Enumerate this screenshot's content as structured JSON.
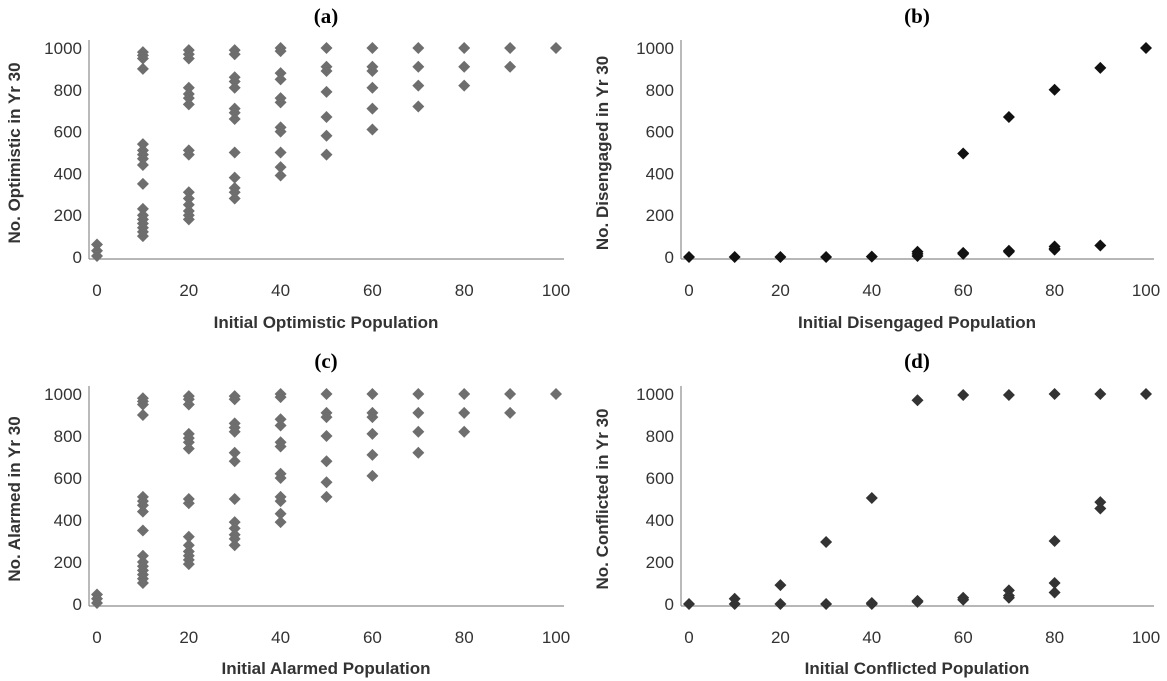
{
  "figure": {
    "panels": [
      {
        "title": "(a)",
        "chart_data": {
          "type": "scatter",
          "xlabel": "Initial Optimistic Population",
          "ylabel": "No. Optimistic in Yr 30",
          "xlim": [
            0,
            100
          ],
          "ylim": [
            0,
            1000
          ],
          "xticks": [
            "0",
            "20",
            "40",
            "60",
            "80",
            "100"
          ],
          "yticks": [
            "0",
            "200",
            "400",
            "600",
            "800",
            "1000"
          ],
          "grid": false,
          "legend": "none",
          "marker_color": "#6e6e6e",
          "points": [
            [
              0,
              60
            ],
            [
              0,
              30
            ],
            [
              0,
              5
            ],
            [
              10,
              980
            ],
            [
              10,
              965
            ],
            [
              10,
              950
            ],
            [
              10,
              900
            ],
            [
              10,
              540
            ],
            [
              10,
              510
            ],
            [
              10,
              490
            ],
            [
              10,
              470
            ],
            [
              10,
              440
            ],
            [
              10,
              350
            ],
            [
              10,
              230
            ],
            [
              10,
              200
            ],
            [
              10,
              180
            ],
            [
              10,
              160
            ],
            [
              10,
              140
            ],
            [
              10,
              120
            ],
            [
              10,
              100
            ],
            [
              20,
              990
            ],
            [
              20,
              970
            ],
            [
              20,
              950
            ],
            [
              20,
              810
            ],
            [
              20,
              780
            ],
            [
              20,
              760
            ],
            [
              20,
              730
            ],
            [
              20,
              510
            ],
            [
              20,
              490
            ],
            [
              20,
              310
            ],
            [
              20,
              280
            ],
            [
              20,
              250
            ],
            [
              20,
              220
            ],
            [
              20,
              200
            ],
            [
              20,
              180
            ],
            [
              30,
              990
            ],
            [
              30,
              970
            ],
            [
              30,
              860
            ],
            [
              30,
              840
            ],
            [
              30,
              810
            ],
            [
              30,
              710
            ],
            [
              30,
              690
            ],
            [
              30,
              660
            ],
            [
              30,
              500
            ],
            [
              30,
              380
            ],
            [
              30,
              330
            ],
            [
              30,
              310
            ],
            [
              30,
              280
            ],
            [
              40,
              1000
            ],
            [
              40,
              985
            ],
            [
              40,
              880
            ],
            [
              40,
              850
            ],
            [
              40,
              760
            ],
            [
              40,
              740
            ],
            [
              40,
              620
            ],
            [
              40,
              600
            ],
            [
              40,
              500
            ],
            [
              40,
              430
            ],
            [
              40,
              390
            ],
            [
              50,
              1000
            ],
            [
              50,
              910
            ],
            [
              50,
              890
            ],
            [
              50,
              790
            ],
            [
              50,
              670
            ],
            [
              50,
              580
            ],
            [
              50,
              490
            ],
            [
              60,
              1000
            ],
            [
              60,
              910
            ],
            [
              60,
              890
            ],
            [
              60,
              810
            ],
            [
              60,
              710
            ],
            [
              60,
              610
            ],
            [
              70,
              1000
            ],
            [
              70,
              910
            ],
            [
              70,
              820
            ],
            [
              70,
              720
            ],
            [
              80,
              1000
            ],
            [
              80,
              910
            ],
            [
              80,
              820
            ],
            [
              90,
              1000
            ],
            [
              90,
              910
            ],
            [
              100,
              1000
            ]
          ]
        }
      },
      {
        "title": "(b)",
        "chart_data": {
          "type": "scatter",
          "xlabel": "Initial Disengaged Population",
          "ylabel": "No. Disengaged in Yr 30",
          "xlim": [
            0,
            100
          ],
          "ylim": [
            0,
            1000
          ],
          "xticks": [
            "0",
            "20",
            "40",
            "60",
            "80",
            "100"
          ],
          "yticks": [
            "0",
            "200",
            "400",
            "600",
            "800",
            "1000"
          ],
          "grid": false,
          "legend": "none",
          "marker_color": "#111111",
          "points": [
            [
              0,
              0
            ],
            [
              10,
              0
            ],
            [
              20,
              0
            ],
            [
              30,
              0
            ],
            [
              40,
              2
            ],
            [
              50,
              25
            ],
            [
              50,
              15
            ],
            [
              50,
              5
            ],
            [
              60,
              495
            ],
            [
              60,
              20
            ],
            [
              60,
              15
            ],
            [
              70,
              670
            ],
            [
              70,
              30
            ],
            [
              70,
              25
            ],
            [
              80,
              800
            ],
            [
              80,
              50
            ],
            [
              80,
              40
            ],
            [
              80,
              35
            ],
            [
              90,
              905
            ],
            [
              90,
              55
            ],
            [
              100,
              1000
            ]
          ]
        }
      },
      {
        "title": "(c)",
        "chart_data": {
          "type": "scatter",
          "xlabel": "Initial Alarmed Population",
          "ylabel": "No. Alarmed in Yr 30",
          "xlim": [
            0,
            100
          ],
          "ylim": [
            0,
            1000
          ],
          "xticks": [
            "0",
            "20",
            "40",
            "60",
            "80",
            "100"
          ],
          "yticks": [
            "0",
            "200",
            "400",
            "600",
            "800",
            "1000"
          ],
          "grid": false,
          "legend": "none",
          "marker_color": "#6e6e6e",
          "points": [
            [
              0,
              45
            ],
            [
              0,
              25
            ],
            [
              0,
              5
            ],
            [
              10,
              980
            ],
            [
              10,
              965
            ],
            [
              10,
              950
            ],
            [
              10,
              900
            ],
            [
              10,
              510
            ],
            [
              10,
              490
            ],
            [
              10,
              470
            ],
            [
              10,
              440
            ],
            [
              10,
              350
            ],
            [
              10,
              230
            ],
            [
              10,
              200
            ],
            [
              10,
              180
            ],
            [
              10,
              160
            ],
            [
              10,
              140
            ],
            [
              10,
              120
            ],
            [
              10,
              100
            ],
            [
              20,
              990
            ],
            [
              20,
              975
            ],
            [
              20,
              950
            ],
            [
              20,
              810
            ],
            [
              20,
              790
            ],
            [
              20,
              770
            ],
            [
              20,
              740
            ],
            [
              20,
              500
            ],
            [
              20,
              480
            ],
            [
              20,
              320
            ],
            [
              20,
              280
            ],
            [
              20,
              250
            ],
            [
              20,
              230
            ],
            [
              20,
              210
            ],
            [
              20,
              190
            ],
            [
              30,
              990
            ],
            [
              30,
              975
            ],
            [
              30,
              860
            ],
            [
              30,
              840
            ],
            [
              30,
              820
            ],
            [
              30,
              720
            ],
            [
              30,
              680
            ],
            [
              30,
              500
            ],
            [
              30,
              390
            ],
            [
              30,
              360
            ],
            [
              30,
              330
            ],
            [
              30,
              310
            ],
            [
              30,
              280
            ],
            [
              40,
              1000
            ],
            [
              40,
              985
            ],
            [
              40,
              880
            ],
            [
              40,
              850
            ],
            [
              40,
              770
            ],
            [
              40,
              750
            ],
            [
              40,
              620
            ],
            [
              40,
              600
            ],
            [
              40,
              510
            ],
            [
              40,
              490
            ],
            [
              40,
              430
            ],
            [
              40,
              390
            ],
            [
              50,
              1000
            ],
            [
              50,
              910
            ],
            [
              50,
              890
            ],
            [
              50,
              800
            ],
            [
              50,
              680
            ],
            [
              50,
              580
            ],
            [
              50,
              510
            ],
            [
              60,
              1000
            ],
            [
              60,
              910
            ],
            [
              60,
              890
            ],
            [
              60,
              810
            ],
            [
              60,
              710
            ],
            [
              60,
              610
            ],
            [
              70,
              1000
            ],
            [
              70,
              910
            ],
            [
              70,
              820
            ],
            [
              70,
              720
            ],
            [
              80,
              1000
            ],
            [
              80,
              910
            ],
            [
              80,
              820
            ],
            [
              90,
              1000
            ],
            [
              90,
              910
            ],
            [
              100,
              1000
            ]
          ]
        }
      },
      {
        "title": "(d)",
        "chart_data": {
          "type": "scatter",
          "xlabel": "Initial Conflicted Population",
          "ylabel": "No. Conflicted in Yr 30",
          "xlim": [
            0,
            100
          ],
          "ylim": [
            0,
            1000
          ],
          "xticks": [
            "0",
            "20",
            "40",
            "60",
            "80",
            "100"
          ],
          "yticks": [
            "0",
            "200",
            "400",
            "600",
            "800",
            "1000"
          ],
          "grid": false,
          "legend": "none",
          "marker_color": "#333333",
          "points": [
            [
              0,
              0
            ],
            [
              10,
              25
            ],
            [
              10,
              0
            ],
            [
              20,
              90
            ],
            [
              20,
              0
            ],
            [
              30,
              295
            ],
            [
              30,
              0
            ],
            [
              40,
              505
            ],
            [
              40,
              5
            ],
            [
              40,
              0
            ],
            [
              50,
              970
            ],
            [
              50,
              15
            ],
            [
              50,
              10
            ],
            [
              60,
              995
            ],
            [
              60,
              30
            ],
            [
              60,
              20
            ],
            [
              70,
              995
            ],
            [
              70,
              65
            ],
            [
              70,
              40
            ],
            [
              70,
              30
            ],
            [
              80,
              1000
            ],
            [
              80,
              300
            ],
            [
              80,
              100
            ],
            [
              80,
              55
            ],
            [
              90,
              1000
            ],
            [
              90,
              485
            ],
            [
              90,
              455
            ],
            [
              100,
              1000
            ]
          ]
        }
      }
    ]
  }
}
